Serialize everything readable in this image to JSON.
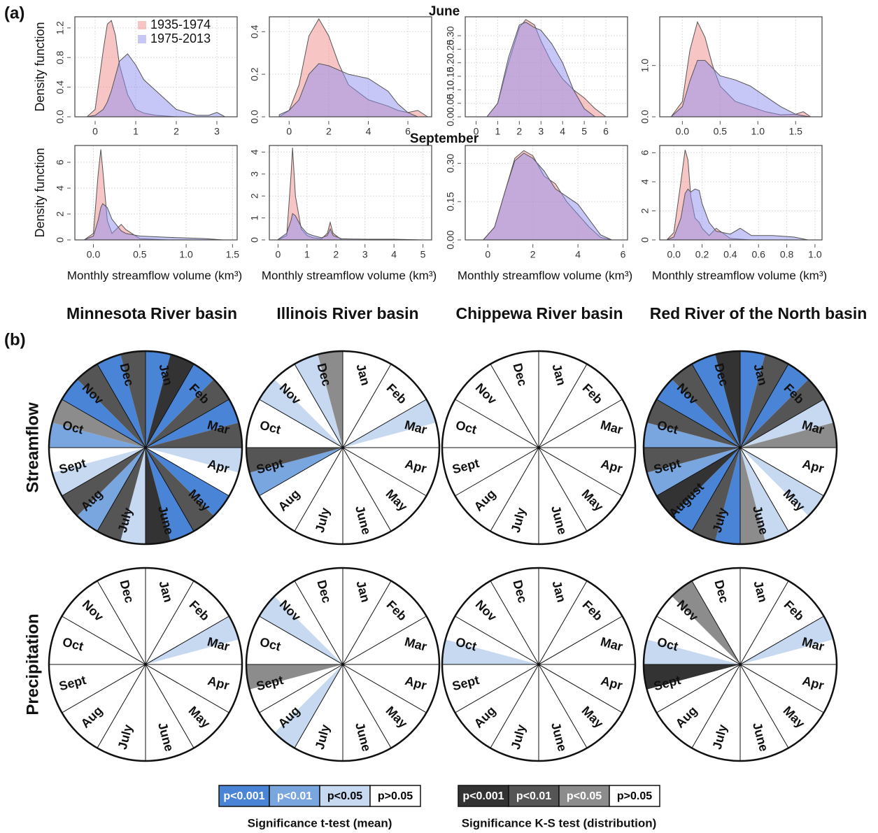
{
  "panel_labels": [
    "(a)",
    "(b)"
  ],
  "row_titles": [
    "June",
    "September"
  ],
  "basins": [
    "Minnesota River basin",
    "Illinois River basin",
    "Chippewa River basin",
    "Red River of the North basin"
  ],
  "chart_data": [
    {
      "type": "area",
      "ylabel": "Density function",
      "legend": "top",
      "grid": true,
      "x": [
        -0.2,
        0,
        0.2,
        0.3,
        0.4,
        0.5,
        0.6,
        0.8,
        1,
        1.2,
        1.5,
        2,
        2.5,
        2.8,
        3,
        3.2
      ],
      "series": [
        {
          "name": "1935-1974",
          "color": "#f28b8b",
          "values": [
            0,
            0.1,
            0.9,
            1.25,
            1.3,
            1.1,
            0.7,
            0.3,
            0.1,
            0.05,
            0.02,
            0,
            0,
            0,
            0,
            0
          ]
        },
        {
          "name": "1975-2013",
          "color": "#8f8ff0",
          "values": [
            0,
            0.02,
            0.1,
            0.2,
            0.35,
            0.55,
            0.75,
            0.85,
            0.7,
            0.5,
            0.35,
            0.1,
            0.02,
            0.02,
            0.06,
            0
          ]
        }
      ],
      "xlim": [
        -0.5,
        3.5
      ],
      "xticks": [
        0,
        1,
        2,
        3
      ],
      "ylim": [
        0,
        1.35
      ],
      "yticks": [
        {
          "value": 0,
          "label": "0.0"
        },
        0.4,
        0.8,
        1.2
      ]
    },
    {
      "type": "area",
      "grid": true,
      "x": [
        -0.5,
        0,
        0.5,
        1,
        1.5,
        2,
        2.5,
        3,
        4,
        5,
        5.5,
        6,
        6.5,
        7
      ],
      "series": [
        {
          "color": "#f28b8b",
          "values": [
            0,
            0.03,
            0.15,
            0.38,
            0.46,
            0.38,
            0.25,
            0.15,
            0.08,
            0.05,
            0.03,
            0.02,
            0.03,
            0
          ]
        },
        {
          "color": "#8f8ff0",
          "values": [
            0.01,
            0.03,
            0.08,
            0.2,
            0.25,
            0.24,
            0.22,
            0.2,
            0.18,
            0.12,
            0.06,
            0.02,
            0,
            0
          ]
        }
      ],
      "xlim": [
        -1,
        7.2
      ],
      "xticks": [
        0,
        2,
        4,
        6
      ],
      "ylim": [
        0,
        0.47
      ],
      "yticks": [
        {
          "value": 0,
          "label": "0.0"
        },
        0.2,
        0.4
      ]
    },
    {
      "type": "area",
      "grid": true,
      "x": [
        0.5,
        1,
        1.5,
        2,
        2.3,
        2.7,
        3,
        3.5,
        4,
        4.5,
        5,
        5.5,
        6
      ],
      "series": [
        {
          "color": "#f28b8b",
          "values": [
            0,
            0.05,
            0.2,
            0.33,
            0.36,
            0.34,
            0.28,
            0.2,
            0.14,
            0.1,
            0.07,
            0.03,
            0
          ]
        },
        {
          "color": "#8f8ff0",
          "values": [
            0,
            0.05,
            0.22,
            0.34,
            0.35,
            0.33,
            0.32,
            0.27,
            0.2,
            0.1,
            0.03,
            0,
            0
          ]
        }
      ],
      "xlim": [
        -0.5,
        7
      ],
      "xticks": [
        0,
        1,
        2,
        3,
        4,
        5,
        6
      ],
      "ylim": [
        0,
        0.37
      ],
      "yticks": [
        {
          "value": 0,
          "label": "0.00"
        },
        0.05,
        {
          "value": 0.1,
          "label": "0.10"
        },
        0.15,
        {
          "value": 0.2,
          "label": "0.20"
        },
        0.25,
        {
          "value": 0.3,
          "label": "0.30"
        }
      ]
    },
    {
      "type": "area",
      "grid": true,
      "x": [
        -0.15,
        0,
        0.1,
        0.2,
        0.3,
        0.4,
        0.5,
        0.7,
        0.9,
        1.1,
        1.3,
        1.5,
        1.6,
        1.7
      ],
      "series": [
        {
          "color": "#f28b8b",
          "values": [
            0,
            0.3,
            1.3,
            1.85,
            1.55,
            1.0,
            0.6,
            0.3,
            0.2,
            0.1,
            0.04,
            0.05,
            0.1,
            0
          ]
        },
        {
          "color": "#8f8ff0",
          "values": [
            0,
            0.2,
            0.7,
            1.1,
            1.1,
            0.95,
            0.8,
            0.72,
            0.6,
            0.4,
            0.2,
            0.05,
            0.02,
            0
          ]
        }
      ],
      "xlim": [
        -0.3,
        1.85
      ],
      "xticks": [
        {
          "value": 0,
          "label": "0.0"
        },
        0.5,
        {
          "value": 1,
          "label": "1.0"
        },
        1.5
      ],
      "ylim": [
        0,
        1.95
      ],
      "yticks": [
        {
          "value": 0,
          "label": "0.0"
        },
        {
          "value": 1,
          "label": "1.0"
        }
      ]
    },
    {
      "type": "area",
      "ylabel": "Density function",
      "xlabel": "Monthly streamflow volume (km³)",
      "grid": true,
      "x": [
        -0.1,
        0,
        0.05,
        0.08,
        0.1,
        0.15,
        0.2,
        0.3,
        0.35,
        0.5,
        0.8,
        1.2,
        1.4
      ],
      "series": [
        {
          "color": "#f28b8b",
          "values": [
            0,
            0.5,
            5,
            7,
            5.5,
            1.5,
            0.5,
            1.2,
            0.8,
            0.1,
            0,
            0,
            0
          ]
        },
        {
          "color": "#8f8ff0",
          "values": [
            0,
            0.3,
            1.5,
            2.5,
            2.8,
            2.5,
            1.6,
            0.7,
            0.5,
            0.3,
            0.2,
            0.1,
            0
          ]
        }
      ],
      "xlim": [
        -0.2,
        1.55
      ],
      "xticks": [
        {
          "value": 0,
          "label": "0.0"
        },
        0.5,
        {
          "value": 1,
          "label": "1.0"
        },
        1.5
      ],
      "ylim": [
        0,
        7.3
      ],
      "yticks": [
        0,
        2,
        4,
        6
      ]
    },
    {
      "type": "area",
      "xlabel": "Monthly streamflow volume (km³)",
      "grid": true,
      "x": [
        0,
        0.3,
        0.45,
        0.5,
        0.6,
        0.8,
        1,
        1.2,
        1.5,
        1.7,
        1.8,
        1.9,
        2.2,
        3,
        4,
        5
      ],
      "series": [
        {
          "color": "#f28b8b",
          "values": [
            0,
            0.2,
            3,
            4.2,
            2,
            0.5,
            0.2,
            0.1,
            0.05,
            0.3,
            0.8,
            0.3,
            0,
            0,
            0,
            0
          ]
        },
        {
          "color": "#8f8ff0",
          "values": [
            0.02,
            0.3,
            0.9,
            1.2,
            1.1,
            0.6,
            0.3,
            0.2,
            0.1,
            0.2,
            0.5,
            0.2,
            0.05,
            0.03,
            0.03,
            0
          ]
        }
      ],
      "xlim": [
        -0.3,
        5.3
      ],
      "xticks": [
        0,
        1,
        2,
        3,
        4,
        5
      ],
      "ylim": [
        0,
        4.3
      ],
      "yticks": [
        0,
        1,
        2,
        3,
        4
      ]
    },
    {
      "type": "area",
      "xlabel": "Monthly streamflow volume (km³)",
      "grid": true,
      "x": [
        -0.2,
        0.3,
        0.8,
        1.2,
        1.6,
        2,
        2.5,
        3,
        3.5,
        4,
        4.5,
        5,
        5.5
      ],
      "series": [
        {
          "color": "#f28b8b",
          "values": [
            0,
            0.05,
            0.2,
            0.32,
            0.35,
            0.33,
            0.25,
            0.22,
            0.15,
            0.1,
            0.05,
            0.01,
            0
          ]
        },
        {
          "color": "#8f8ff0",
          "values": [
            0,
            0.05,
            0.2,
            0.31,
            0.34,
            0.32,
            0.27,
            0.2,
            0.17,
            0.14,
            0.08,
            0.02,
            0
          ]
        }
      ],
      "xlim": [
        -1,
        6.2
      ],
      "xticks": [
        0,
        2,
        4,
        6
      ],
      "ylim": [
        0,
        0.37
      ],
      "yticks": [
        {
          "value": 0,
          "label": "0.00"
        },
        0.15,
        {
          "value": 0.3,
          "label": "0.30"
        }
      ]
    },
    {
      "type": "area",
      "xlabel": "Monthly streamflow volume (km³)",
      "grid": true,
      "x": [
        -0.05,
        0,
        0.05,
        0.08,
        0.1,
        0.12,
        0.15,
        0.18,
        0.2,
        0.25,
        0.3,
        0.4,
        0.47,
        0.55,
        0.7,
        0.85,
        0.95
      ],
      "series": [
        {
          "color": "#f28b8b",
          "values": [
            0,
            0.5,
            4,
            6.2,
            5.5,
            3,
            1.5,
            1.2,
            0.8,
            0.3,
            0.8,
            0.1,
            0.05,
            0,
            0,
            0,
            0
          ]
        },
        {
          "color": "#8f8ff0",
          "values": [
            0,
            0.2,
            1.5,
            3.2,
            3.5,
            3.3,
            3.5,
            3.4,
            2.5,
            1.2,
            0.6,
            0.4,
            0.8,
            0.3,
            0.3,
            0.2,
            0
          ]
        }
      ],
      "xlim": [
        -0.1,
        1.05
      ],
      "xticks": [
        {
          "value": 0,
          "label": "0.0"
        },
        0.2,
        0.4,
        0.6,
        0.8,
        {
          "value": 1,
          "label": "1.0"
        }
      ],
      "ylim": [
        0,
        6.5
      ],
      "yticks": [
        0,
        2,
        4,
        6
      ]
    },
    {
      "type": "wheel",
      "row_label": "Streamflow",
      "categories": [
        "Jan",
        "Feb",
        "Mar",
        "Apr",
        "May",
        "June",
        "July",
        "Aug",
        "Sept",
        "Oct",
        "Nov",
        "Dec"
      ],
      "ttest_colors": [
        "#4a84d6",
        "#4a84d6",
        "#4a84d6",
        "#c6d9f1",
        "#4a84d6",
        "#4a84d6",
        "#c6d9f1",
        "#7aa6e0",
        "#c6d9f1",
        "#7aa6e0",
        "#4a84d6",
        "#4a84d6"
      ],
      "ks_colors": [
        "#333333",
        "#555555",
        "#555555",
        "#ffffff",
        "#555555",
        "#333333",
        "#555555",
        "#555555",
        "#ffffff",
        "#8c8c8c",
        "#555555",
        "#555555"
      ]
    },
    {
      "type": "wheel",
      "categories": [
        "Jan",
        "Feb",
        "Mar",
        "Apr",
        "May",
        "June",
        "July",
        "Aug",
        "Sept",
        "Oct",
        "Nov",
        "Dec"
      ],
      "ttest_colors": [
        "#ffffff",
        "#ffffff",
        "#c6d9f1",
        "#ffffff",
        "#ffffff",
        "#ffffff",
        "#ffffff",
        "#ffffff",
        "#7aa6e0",
        "#ffffff",
        "#c6d9f1",
        "#c6d9f1"
      ],
      "ks_colors": [
        "#ffffff",
        "#ffffff",
        "#ffffff",
        "#ffffff",
        "#ffffff",
        "#ffffff",
        "#ffffff",
        "#ffffff",
        "#555555",
        "#ffffff",
        "#ffffff",
        "#8c8c8c"
      ]
    },
    {
      "type": "wheel",
      "categories": [
        "Jan",
        "Feb",
        "Mar",
        "Apr",
        "May",
        "June",
        "July",
        "Aug",
        "Sept",
        "Oct",
        "Nov",
        "Dec"
      ],
      "ttest_colors": [
        "#ffffff",
        "#ffffff",
        "#ffffff",
        "#ffffff",
        "#ffffff",
        "#ffffff",
        "#ffffff",
        "#ffffff",
        "#ffffff",
        "#ffffff",
        "#ffffff",
        "#ffffff"
      ],
      "ks_colors": [
        "#ffffff",
        "#ffffff",
        "#ffffff",
        "#ffffff",
        "#ffffff",
        "#ffffff",
        "#ffffff",
        "#ffffff",
        "#ffffff",
        "#ffffff",
        "#ffffff",
        "#ffffff"
      ]
    },
    {
      "type": "wheel",
      "categories": [
        "Jan",
        "Feb",
        "Mar",
        "Apr",
        "May",
        "June",
        "July",
        "August",
        "Sept",
        "Oct",
        "Nov",
        "Dec"
      ],
      "ttest_colors": [
        "#4a84d6",
        "#4a84d6",
        "#c6d9f1",
        "#ffffff",
        "#c6d9f1",
        "#c6d9f1",
        "#4a84d6",
        "#4a84d6",
        "#7aa6e0",
        "#7aa6e0",
        "#4a84d6",
        "#4a84d6"
      ],
      "ks_colors": [
        "#555555",
        "#555555",
        "#8c8c8c",
        "#ffffff",
        "#ffffff",
        "#8c8c8c",
        "#555555",
        "#333333",
        "#555555",
        "#555555",
        "#555555",
        "#333333"
      ]
    },
    {
      "type": "wheel",
      "row_label": "Precipitation",
      "categories": [
        "Jan",
        "Feb",
        "Mar",
        "Apr",
        "May",
        "June",
        "July",
        "Aug",
        "Sept",
        "Oct",
        "Nov",
        "Dec"
      ],
      "ttest_colors": [
        "#ffffff",
        "#ffffff",
        "#c6d9f1",
        "#ffffff",
        "#ffffff",
        "#ffffff",
        "#ffffff",
        "#ffffff",
        "#ffffff",
        "#ffffff",
        "#ffffff",
        "#ffffff"
      ],
      "ks_colors": [
        "#ffffff",
        "#ffffff",
        "#ffffff",
        "#ffffff",
        "#ffffff",
        "#ffffff",
        "#ffffff",
        "#ffffff",
        "#ffffff",
        "#ffffff",
        "#ffffff",
        "#ffffff"
      ]
    },
    {
      "type": "wheel",
      "categories": [
        "Jan",
        "Feb",
        "Mar",
        "Apr",
        "May",
        "June",
        "July",
        "Aug",
        "Sept",
        "Oct",
        "Nov",
        "Dec"
      ],
      "ttest_colors": [
        "#ffffff",
        "#ffffff",
        "#ffffff",
        "#ffffff",
        "#ffffff",
        "#ffffff",
        "#ffffff",
        "#c6d9f1",
        "#ffffff",
        "#ffffff",
        "#c6d9f1",
        "#ffffff"
      ],
      "ks_colors": [
        "#ffffff",
        "#ffffff",
        "#ffffff",
        "#ffffff",
        "#ffffff",
        "#ffffff",
        "#ffffff",
        "#ffffff",
        "#8c8c8c",
        "#ffffff",
        "#ffffff",
        "#ffffff"
      ]
    },
    {
      "type": "wheel",
      "categories": [
        "Jan",
        "Feb",
        "Mar",
        "Apr",
        "May",
        "June",
        "July",
        "Aug",
        "Sept",
        "Oct",
        "Nov",
        "Dec"
      ],
      "ttest_colors": [
        "#ffffff",
        "#ffffff",
        "#ffffff",
        "#ffffff",
        "#ffffff",
        "#ffffff",
        "#ffffff",
        "#ffffff",
        "#ffffff",
        "#c6d9f1",
        "#ffffff",
        "#ffffff"
      ],
      "ks_colors": [
        "#ffffff",
        "#ffffff",
        "#ffffff",
        "#ffffff",
        "#ffffff",
        "#ffffff",
        "#ffffff",
        "#ffffff",
        "#ffffff",
        "#ffffff",
        "#ffffff",
        "#ffffff"
      ]
    },
    {
      "type": "wheel",
      "categories": [
        "Jan",
        "Feb",
        "Mar",
        "Apr",
        "May",
        "June",
        "July",
        "Aug",
        "Sept",
        "Oct",
        "Nov",
        "Dec"
      ],
      "ttest_colors": [
        "#ffffff",
        "#ffffff",
        "#c6d9f1",
        "#ffffff",
        "#ffffff",
        "#ffffff",
        "#ffffff",
        "#ffffff",
        "#ffffff",
        "#c6d9f1",
        "#ffffff",
        "#ffffff"
      ],
      "ks_colors": [
        "#ffffff",
        "#ffffff",
        "#ffffff",
        "#ffffff",
        "#ffffff",
        "#ffffff",
        "#ffffff",
        "#ffffff",
        "#333333",
        "#ffffff",
        "#8c8c8c",
        "#ffffff"
      ]
    }
  ],
  "legends": [
    {
      "title": "Significance t-test (mean)",
      "items": [
        {
          "label": "p<0.001",
          "color": "#4a84d6"
        },
        {
          "label": "p<0.01",
          "color": "#7aa6e0"
        },
        {
          "label": "p<0.05",
          "color": "#c6d9f1"
        },
        {
          "label": "p>0.05",
          "color": "#ffffff"
        }
      ]
    },
    {
      "title": "Significance K-S test (distribution)",
      "items": [
        {
          "label": "p<0.001",
          "color": "#333333"
        },
        {
          "label": "p<0.01",
          "color": "#555555"
        },
        {
          "label": "p<0.05",
          "color": "#8c8c8c"
        },
        {
          "label": "p>0.05",
          "color": "#ffffff"
        }
      ]
    }
  ]
}
